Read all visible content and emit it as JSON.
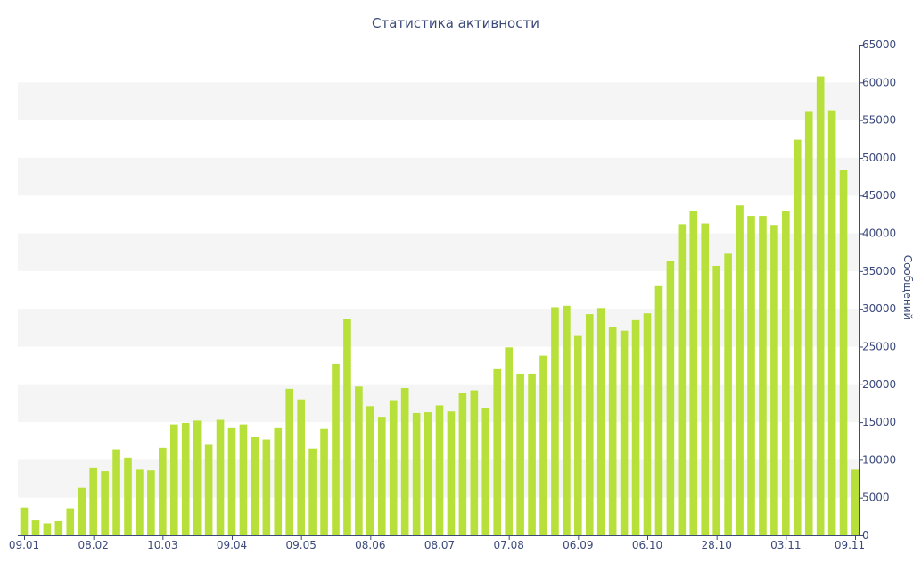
{
  "chart_data": {
    "type": "bar",
    "title": "Статистика активности",
    "ylabel": "Сообщений",
    "ylim": [
      0,
      65000
    ],
    "y_ticks": [
      0,
      5000,
      10000,
      15000,
      20000,
      25000,
      30000,
      35000,
      40000,
      45000,
      50000,
      55000,
      60000,
      65000
    ],
    "x_tick_labels": [
      {
        "index": 0,
        "label": "09.01"
      },
      {
        "index": 6,
        "label": "08.02"
      },
      {
        "index": 12,
        "label": "10.03"
      },
      {
        "index": 18,
        "label": "09.04"
      },
      {
        "index": 24,
        "label": "09.05"
      },
      {
        "index": 30,
        "label": "08.06"
      },
      {
        "index": 36,
        "label": "08.07"
      },
      {
        "index": 42,
        "label": "07.08"
      },
      {
        "index": 48,
        "label": "06.09"
      },
      {
        "index": 54,
        "label": "06.10"
      },
      {
        "index": 60,
        "label": "28.10"
      },
      {
        "index": 66,
        "label": "03.11"
      },
      {
        "index": 72,
        "label": "09.11"
      }
    ],
    "bar_color": "#b8e03a",
    "grid_band_color": "#f5f5f5",
    "axis_color": "#3b4a7a",
    "values": [
      3700,
      2000,
      1600,
      1900,
      3600,
      6300,
      9000,
      8500,
      11400,
      10300,
      8700,
      8600,
      11600,
      14700,
      14900,
      15200,
      12000,
      15300,
      14200,
      14700,
      13000,
      12700,
      14200,
      19400,
      18000,
      11500,
      14100,
      22700,
      28600,
      19700,
      17100,
      15700,
      17900,
      19500,
      16200,
      16300,
      17200,
      16400,
      18900,
      19200,
      16900,
      22000,
      24900,
      21400,
      21400,
      23800,
      30200,
      30400,
      26400,
      29300,
      30100,
      27600,
      27100,
      28500,
      29400,
      33000,
      36400,
      41200,
      42900,
      41300,
      35700,
      37300,
      43700,
      42300,
      42300,
      41100,
      43000,
      52400,
      56200,
      60800,
      56300,
      48400,
      8700
    ]
  }
}
